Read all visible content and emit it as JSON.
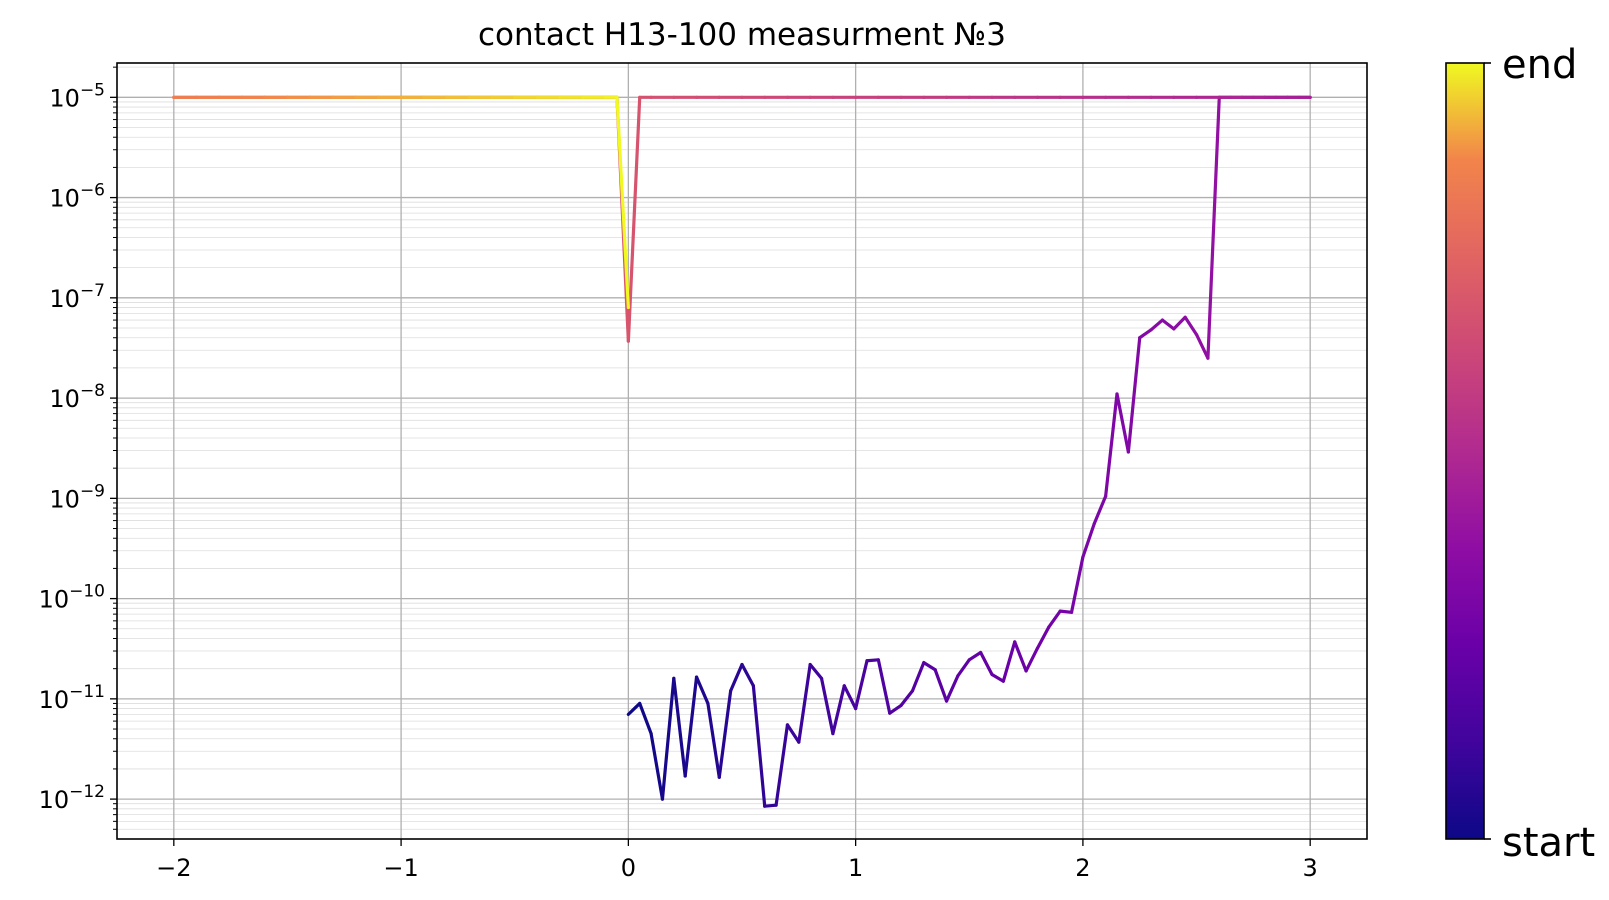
{
  "chart_data": {
    "type": "line",
    "title": "contact H13-100 measurment №3",
    "xlabel": "",
    "ylabel": "",
    "xlim": [
      -2.25,
      3.25
    ],
    "ylim": [
      4e-13,
      2.2e-05
    ],
    "yscale": "log",
    "grid": {
      "major": true,
      "minor_y": true
    },
    "x_ticks": [
      {
        "value": -2,
        "label": "−2"
      },
      {
        "value": -1,
        "label": "−1"
      },
      {
        "value": 0,
        "label": "0"
      },
      {
        "value": 1,
        "label": "1"
      },
      {
        "value": 2,
        "label": "2"
      },
      {
        "value": 3,
        "label": "3"
      }
    ],
    "y_ticks": [
      {
        "value": 1e-05,
        "base": "10",
        "exp": "−5"
      },
      {
        "value": 1e-06,
        "base": "10",
        "exp": "−6"
      },
      {
        "value": 1e-07,
        "base": "10",
        "exp": "−7"
      },
      {
        "value": 1e-08,
        "base": "10",
        "exp": "−8"
      },
      {
        "value": 1e-09,
        "base": "10",
        "exp": "−9"
      },
      {
        "value": 1e-10,
        "base": "10",
        "exp": "−10"
      },
      {
        "value": 1e-11,
        "base": "10",
        "exp": "−11"
      },
      {
        "value": 1e-12,
        "base": "10",
        "exp": "−12"
      }
    ],
    "colormap": "plasma",
    "colorbar": {
      "top_label": "end",
      "bottom_label": "start"
    },
    "series": [
      {
        "x": [
          0.0,
          0.05,
          0.1,
          0.15,
          0.2,
          0.25,
          0.3,
          0.35,
          0.4,
          0.45,
          0.5,
          0.55,
          0.6,
          0.65,
          0.7,
          0.75,
          0.8,
          0.85,
          0.9,
          0.95,
          1.0,
          1.05,
          1.1,
          1.15,
          1.2,
          1.25,
          1.3,
          1.35,
          1.4,
          1.45,
          1.5,
          1.55,
          1.6,
          1.65,
          1.7,
          1.75,
          1.8,
          1.85,
          1.9,
          1.95,
          2.0,
          2.05,
          2.1,
          2.15,
          2.2,
          2.25,
          2.3,
          2.35,
          2.4,
          2.45,
          2.5,
          2.55,
          2.6,
          2.65,
          2.7,
          2.75,
          2.8,
          2.85,
          2.9,
          2.95,
          3.0,
          2.9,
          2.8,
          2.7,
          2.6,
          2.5,
          2.4,
          2.3,
          2.2,
          2.1,
          2.0,
          1.9,
          1.8,
          1.7,
          1.6,
          1.5,
          1.4,
          1.3,
          1.2,
          1.1,
          1.0,
          0.9,
          0.8,
          0.7,
          0.6,
          0.5,
          0.4,
          0.3,
          0.2,
          0.1,
          0.05,
          0.0,
          -0.05,
          -0.1,
          -0.2,
          -0.3,
          -0.4,
          -0.5,
          -0.6,
          -0.7,
          -0.8,
          -0.9,
          -1.0,
          -1.1,
          -1.2,
          -1.3,
          -1.4,
          -1.5,
          -1.6,
          -1.7,
          -1.8,
          -1.9,
          -2.0,
          -1.9,
          -1.8,
          -1.7,
          -1.6,
          -1.5,
          -1.4,
          -1.3,
          -1.2,
          -1.1,
          -1.0,
          -0.9,
          -0.8,
          -0.7,
          -0.6,
          -0.5,
          -0.4,
          -0.3,
          -0.2,
          -0.1,
          -0.05,
          0.0
        ],
        "y": [
          7e-12,
          9e-12,
          4.5e-12,
          1e-12,
          1.6e-11,
          1.7e-12,
          1.65e-11,
          9e-12,
          1.65e-12,
          1.2e-11,
          2.2e-11,
          1.35e-11,
          8.5e-13,
          8.7e-13,
          5.5e-12,
          3.7e-12,
          2.2e-11,
          1.6e-11,
          4.5e-12,
          1.35e-11,
          8e-12,
          2.4e-11,
          2.45e-11,
          7.2e-12,
          8.6e-12,
          1.2e-11,
          2.3e-11,
          1.95e-11,
          9.5e-12,
          1.7e-11,
          2.45e-11,
          2.9e-11,
          1.75e-11,
          1.5e-11,
          3.7e-11,
          1.9e-11,
          3.2e-11,
          5.2e-11,
          7.5e-11,
          7.3e-11,
          2.6e-10,
          5.6e-10,
          1.05e-09,
          1.1e-08,
          2.9e-09,
          4e-08,
          4.8e-08,
          6e-08,
          4.9e-08,
          6.4e-08,
          4.3e-08,
          2.5e-08,
          1e-05,
          1e-05,
          1e-05,
          1e-05,
          1e-05,
          1e-05,
          1e-05,
          1e-05,
          1e-05,
          1e-05,
          1e-05,
          1e-05,
          1e-05,
          1e-05,
          1e-05,
          1e-05,
          1e-05,
          1e-05,
          1e-05,
          1e-05,
          1e-05,
          1e-05,
          1e-05,
          1e-05,
          1e-05,
          1e-05,
          1e-05,
          1e-05,
          1e-05,
          1e-05,
          1e-05,
          1e-05,
          1e-05,
          1e-05,
          1e-05,
          1e-05,
          1e-05,
          1e-05,
          1e-05,
          3.7e-08,
          1e-05,
          1e-05,
          1e-05,
          1e-05,
          1e-05,
          1e-05,
          1e-05,
          1e-05,
          1e-05,
          1e-05,
          1e-05,
          1e-05,
          1e-05,
          1e-05,
          1e-05,
          1e-05,
          1e-05,
          1e-05,
          1e-05,
          1e-05,
          1e-05,
          1e-05,
          1e-05,
          1e-05,
          1e-05,
          1e-05,
          1e-05,
          1e-05,
          1e-05,
          1e-05,
          1e-05,
          1e-05,
          1e-05,
          1e-05,
          1e-05,
          1e-05,
          1e-05,
          1e-05,
          1e-05,
          1e-05,
          1e-05,
          8e-08
        ]
      }
    ]
  }
}
